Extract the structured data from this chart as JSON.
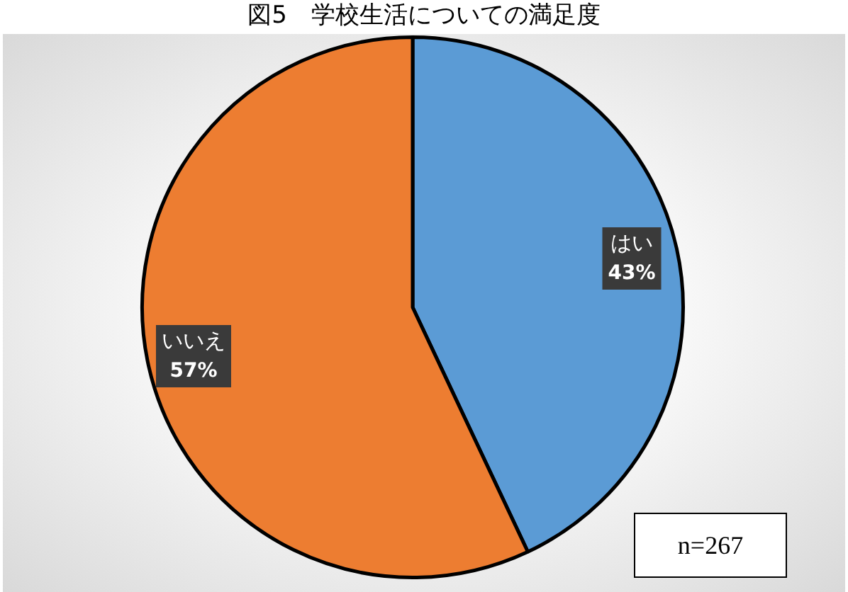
{
  "chart_data": {
    "type": "pie",
    "title": "図5　学校生活についての満足度",
    "categories": [
      "はい",
      "いいえ"
    ],
    "values": [
      43,
      57
    ],
    "colors": [
      "#5b9bd5",
      "#ed7d31"
    ],
    "value_labels": [
      "43%",
      "57%"
    ],
    "legend": false,
    "annotations": [
      "n=267"
    ]
  }
}
